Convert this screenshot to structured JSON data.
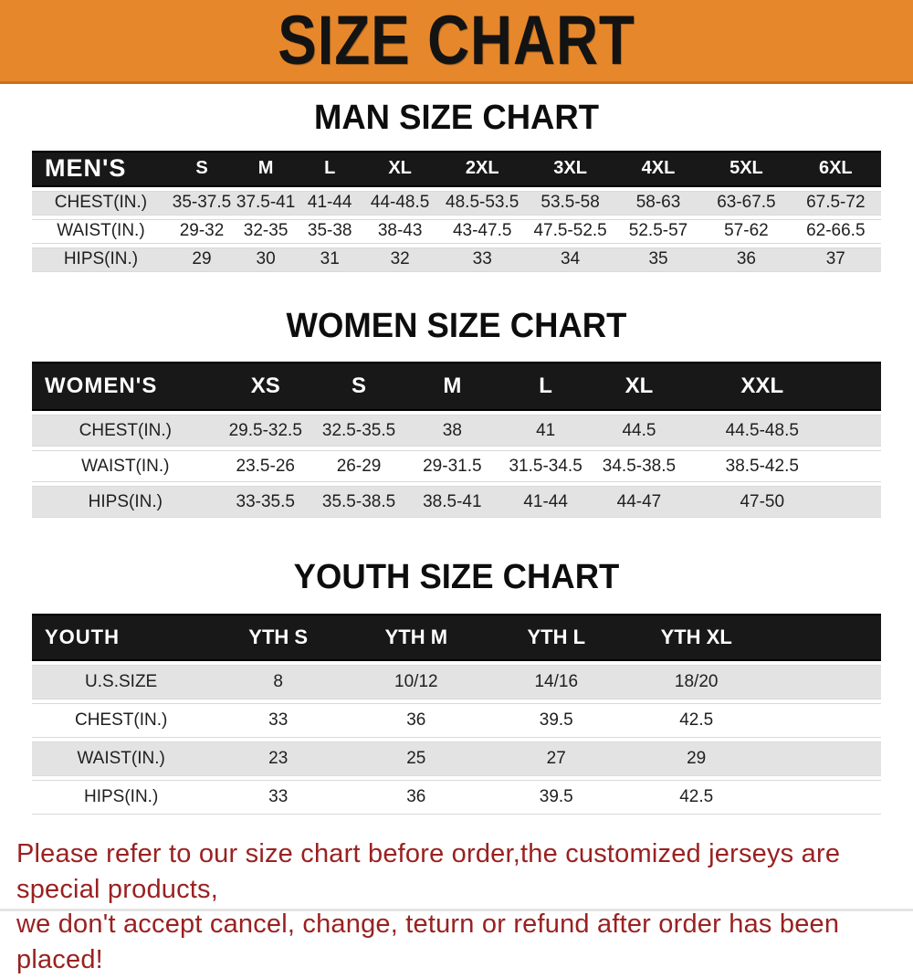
{
  "banner": {
    "title": "SIZE CHART",
    "bg_color": "#e6872b",
    "text_color": "#131313"
  },
  "sections": [
    {
      "id": "men",
      "title": "MAN SIZE CHART",
      "header_label": "MEN'S",
      "columns": [
        "S",
        "M",
        "L",
        "XL",
        "2XL",
        "3XL",
        "4XL",
        "5XL",
        "6XL"
      ],
      "rows": [
        {
          "label": "CHEST(IN.)",
          "values": [
            "35-37.5",
            "37.5-41",
            "41-44",
            "44-48.5",
            "48.5-53.5",
            "53.5-58",
            "58-63",
            "63-67.5",
            "67.5-72"
          ]
        },
        {
          "label": "WAIST(IN.)",
          "values": [
            "29-32",
            "32-35",
            "35-38",
            "38-43",
            "43-47.5",
            "47.5-52.5",
            "52.5-57",
            "57-62",
            "62-66.5"
          ]
        },
        {
          "label": "HIPS(IN.)",
          "values": [
            "29",
            "30",
            "31",
            "32",
            "33",
            "34",
            "35",
            "36",
            "37"
          ]
        }
      ]
    },
    {
      "id": "women",
      "title": "WOMEN SIZE CHART",
      "header_label": "WOMEN'S",
      "columns": [
        "XS",
        "S",
        "M",
        "L",
        "XL",
        "XXL"
      ],
      "rows": [
        {
          "label": "CHEST(IN.)",
          "values": [
            "29.5-32.5",
            "32.5-35.5",
            "38",
            "41",
            "44.5",
            "44.5-48.5"
          ]
        },
        {
          "label": "WAIST(IN.)",
          "values": [
            "23.5-26",
            "26-29",
            "29-31.5",
            "31.5-34.5",
            "34.5-38.5",
            "38.5-42.5"
          ]
        },
        {
          "label": "HIPS(IN.)",
          "values": [
            "33-35.5",
            "35.5-38.5",
            "38.5-41",
            "41-44",
            "44-47",
            "47-50"
          ]
        }
      ]
    },
    {
      "id": "youth",
      "title": "YOUTH SIZE CHART",
      "header_label": "YOUTH",
      "columns": [
        "YTH S",
        "YTH M",
        "YTH L",
        "YTH XL"
      ],
      "rows": [
        {
          "label": "U.S.SIZE",
          "values": [
            "8",
            "10/12",
            "14/16",
            "18/20"
          ]
        },
        {
          "label": "CHEST(IN.)",
          "values": [
            "33",
            "36",
            "39.5",
            "42.5"
          ]
        },
        {
          "label": "WAIST(IN.)",
          "values": [
            "23",
            "25",
            "27",
            "29"
          ]
        },
        {
          "label": "HIPS(IN.)",
          "values": [
            "33",
            "36",
            "39.5",
            "42.5"
          ]
        }
      ]
    }
  ],
  "footer": {
    "line1": "Please refer to our size chart before order,the customized jerseys are special products,",
    "line2": "we don't accept cancel, change, teturn or refund after order has been placed!",
    "color": "#9a2121"
  }
}
